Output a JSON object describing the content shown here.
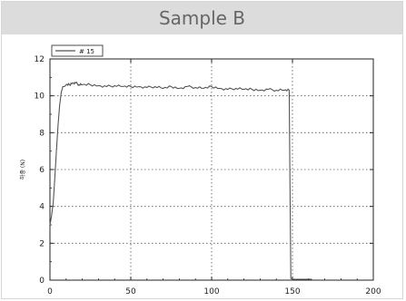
{
  "panel": {
    "title": "Sample B"
  },
  "chart_data": {
    "type": "line",
    "title": "",
    "xlabel": "",
    "ylabel": "하중 (N)",
    "xlim": [
      0,
      200
    ],
    "ylim": [
      0,
      12
    ],
    "xticks": [
      "0",
      "50",
      "100",
      "150",
      "200"
    ],
    "yticks": [
      "0",
      "2",
      "4",
      "6",
      "8",
      "10",
      "12"
    ],
    "grid": true,
    "legend_position": "top-left",
    "series": [
      {
        "name": "# 15",
        "color": "#555555",
        "x": [
          0,
          1,
          2,
          3,
          4,
          5,
          6,
          7,
          8,
          9,
          10,
          12,
          14,
          16,
          18,
          20,
          25,
          30,
          35,
          40,
          45,
          50,
          55,
          60,
          65,
          70,
          75,
          80,
          85,
          90,
          95,
          100,
          105,
          110,
          115,
          120,
          125,
          130,
          135,
          140,
          145,
          148,
          148.5,
          149,
          150,
          155,
          160,
          162
        ],
        "y": [
          3.0,
          3.5,
          4.2,
          5.5,
          7.0,
          8.4,
          9.5,
          10.2,
          10.5,
          10.5,
          10.6,
          10.6,
          10.7,
          10.7,
          10.6,
          10.6,
          10.6,
          10.55,
          10.5,
          10.55,
          10.5,
          10.5,
          10.5,
          10.45,
          10.5,
          10.4,
          10.5,
          10.4,
          10.5,
          10.45,
          10.4,
          10.5,
          10.4,
          10.35,
          10.4,
          10.35,
          10.35,
          10.3,
          10.35,
          10.3,
          10.3,
          10.3,
          5.0,
          0.1,
          0.05,
          0.05,
          0.05,
          0.05
        ]
      }
    ]
  }
}
